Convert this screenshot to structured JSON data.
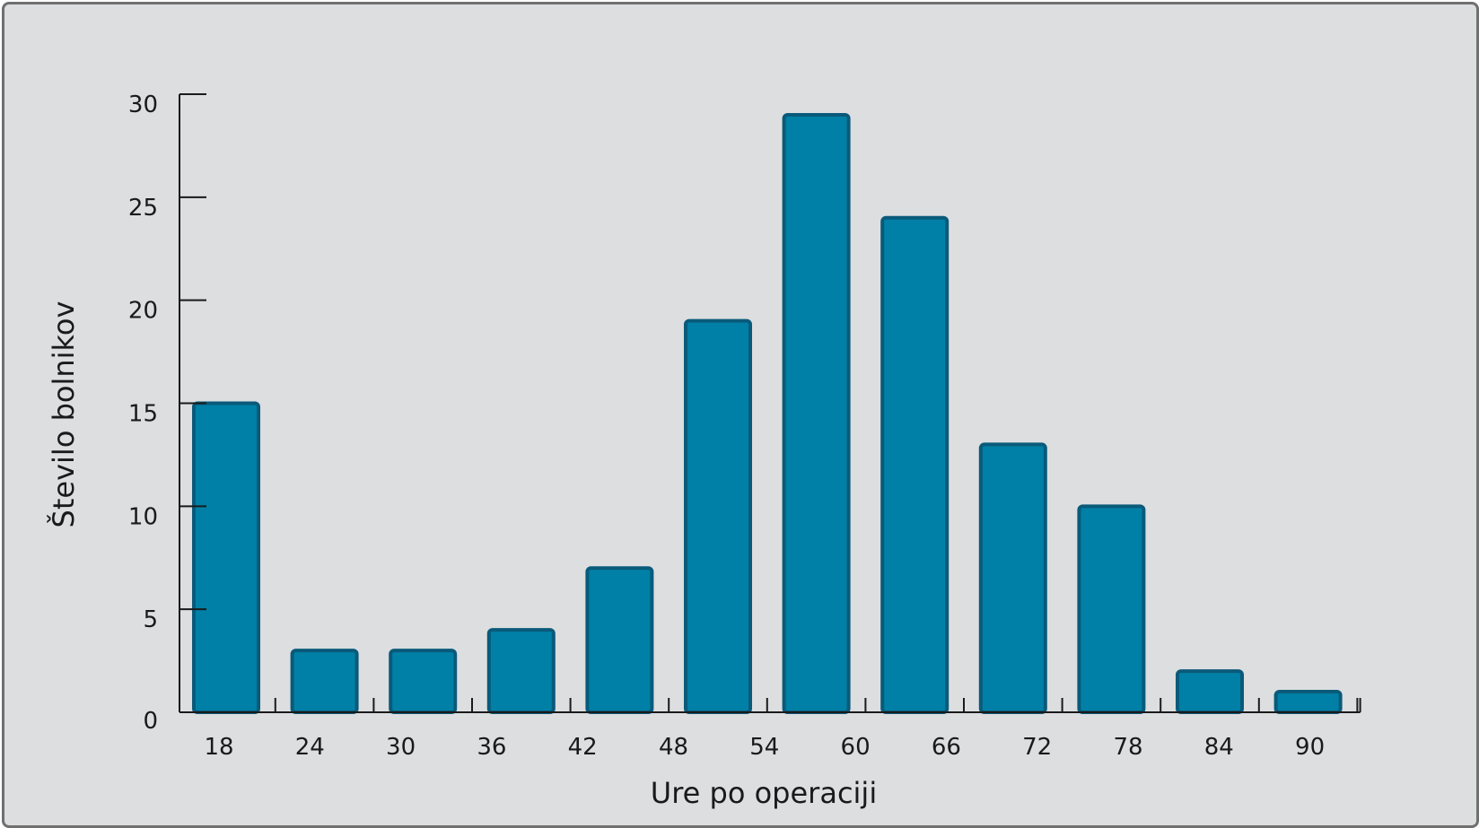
{
  "chart_data": {
    "type": "bar",
    "title": "",
    "xlabel": "Ure po operaciji",
    "ylabel": "Število bolnikov",
    "x_ticks": [
      "18",
      "24",
      "30",
      "36",
      "42",
      "48",
      "54",
      "60",
      "66",
      "72",
      "78",
      "84",
      "90"
    ],
    "bins": [
      {
        "from": 18,
        "to": 24,
        "count": 15
      },
      {
        "from": 24,
        "to": 30,
        "count": 3
      },
      {
        "from": 30,
        "to": 36,
        "count": 3
      },
      {
        "from": 36,
        "to": 42,
        "count": 4
      },
      {
        "from": 42,
        "to": 48,
        "count": 7
      },
      {
        "from": 48,
        "to": 54,
        "count": 19
      },
      {
        "from": 54,
        "to": 60,
        "count": 29
      },
      {
        "from": 60,
        "to": 66,
        "count": 24
      },
      {
        "from": 66,
        "to": 72,
        "count": 13
      },
      {
        "from": 72,
        "to": 78,
        "count": 10
      },
      {
        "from": 78,
        "to": 84,
        "count": 2
      },
      {
        "from": 84,
        "to": 90,
        "count": 1
      }
    ],
    "y_ticks": [
      0,
      5,
      10,
      15,
      20,
      25,
      30
    ],
    "ylim": [
      0,
      30
    ],
    "grid": false,
    "colors": {
      "bar_fill": "#0080a6",
      "bar_stroke": "#0a5a7a",
      "background": "#dcdee0"
    }
  }
}
